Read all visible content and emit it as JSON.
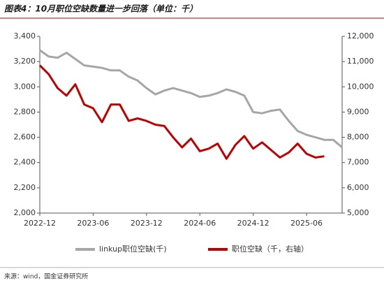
{
  "chart_data": {
    "type": "line",
    "title": "图表4：10月职位空缺数量进一步回落（单位：千）",
    "source": "来源：wind，国金证券研究所",
    "x": [
      "2022-12",
      "2023-01",
      "2023-02",
      "2023-03",
      "2023-04",
      "2023-05",
      "2023-06",
      "2023-07",
      "2023-08",
      "2023-09",
      "2023-10",
      "2023-11",
      "2023-12",
      "2024-01",
      "2024-02",
      "2024-03",
      "2024-04",
      "2024-05",
      "2024-06",
      "2024-07",
      "2024-08",
      "2024-09",
      "2024-10",
      "2024-11",
      "2024-12",
      "2025-01",
      "2025-02",
      "2025-03",
      "2025-04",
      "2025-05",
      "2025-06",
      "2025-07",
      "2025-08",
      "2025-09",
      "2025-10"
    ],
    "xlim": [
      "2022-12",
      "2025-10"
    ],
    "xticks": [
      "2022-12",
      "2023-06",
      "2023-12",
      "2024-06",
      "2024-12",
      "2025-06"
    ],
    "ylim": [
      2000,
      3400
    ],
    "yticks": [
      {
        "value": 2000,
        "label": "2,000"
      },
      {
        "value": 2200,
        "label": "2,200"
      },
      {
        "value": 2400,
        "label": "2,400"
      },
      {
        "value": 2600,
        "label": "2,600"
      },
      {
        "value": 2800,
        "label": "2,800"
      },
      {
        "value": 3000,
        "label": "3,000"
      },
      {
        "value": 3200,
        "label": "3,200"
      },
      {
        "value": 3400,
        "label": "3,400"
      }
    ],
    "y2lim": [
      5000,
      12000
    ],
    "y2ticks": [
      {
        "value": 5000,
        "label": "5,000"
      },
      {
        "value": 6000,
        "label": "6,000"
      },
      {
        "value": 7000,
        "label": "7,000"
      },
      {
        "value": 8000,
        "label": "8,000"
      },
      {
        "value": 9000,
        "label": "9,000"
      },
      {
        "value": 10000,
        "label": "10,000"
      },
      {
        "value": 11000,
        "label": "11,000"
      },
      {
        "value": 12000,
        "label": "12,000"
      }
    ],
    "series": [
      {
        "name": "linkup职位空缺(千)",
        "color": "#a6a6a6",
        "values": [
          3290,
          3240,
          3230,
          3270,
          3220,
          3170,
          3160,
          3150,
          3130,
          3130,
          3080,
          3050,
          2990,
          2940,
          2970,
          2990,
          2970,
          2950,
          2920,
          2930,
          2950,
          2980,
          2960,
          2930,
          2800,
          2790,
          2810,
          2820,
          2730,
          2650,
          2620,
          2600,
          2580,
          2580,
          2520
        ]
      },
      {
        "name": "职位空缺（千，右轴）",
        "color": "#c00000",
        "axis": "y2",
        "values": [
          10850,
          10500,
          9950,
          9650,
          10100,
          9300,
          9150,
          8600,
          9300,
          9300,
          8650,
          8750,
          8650,
          8500,
          8450,
          8000,
          7600,
          7950,
          7450,
          7550,
          7750,
          7150,
          7700,
          8050,
          7550,
          7800,
          7500,
          7200,
          7400,
          7750,
          7350,
          7200,
          7250,
          null,
          null
        ]
      }
    ]
  }
}
